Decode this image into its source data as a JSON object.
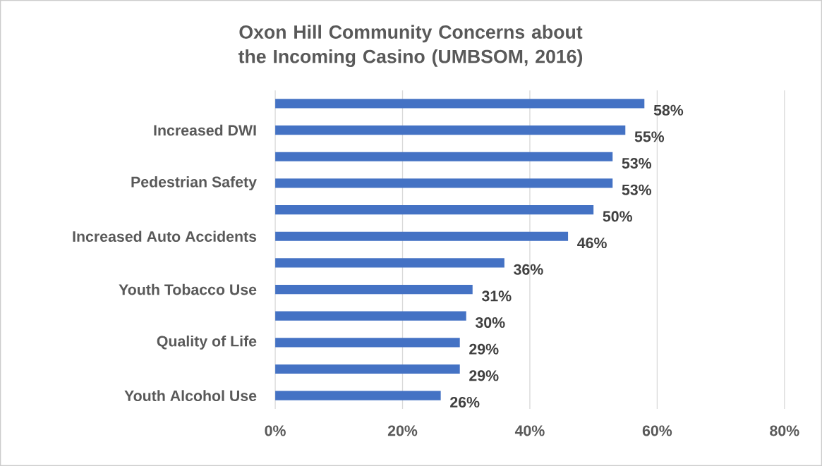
{
  "chart_data": {
    "type": "bar",
    "orientation": "horizontal",
    "title": "Oxon Hill Community Concerns about the Incoming Casino (UMBSOM, 2016)",
    "categories": [
      null,
      "Increased DWI",
      null,
      "Pedestrian Safety",
      null,
      "Increased Auto Accidents",
      null,
      "Youth Tobacco Use",
      null,
      "Quality of Life",
      null,
      "Youth Alcohol Use"
    ],
    "values": [
      58,
      55,
      53,
      53,
      50,
      46,
      36,
      31,
      30,
      29,
      29,
      26
    ],
    "value_labels": [
      "58%",
      "55%",
      "53%",
      "53%",
      "50%",
      "46%",
      "36%",
      "31%",
      "30%",
      "29%",
      "29%",
      "26%"
    ],
    "color": "#4472c4",
    "xlim": [
      0,
      80
    ],
    "xticks": [
      {
        "value": 0,
        "label": "0%"
      },
      {
        "value": 20,
        "label": "20%"
      },
      {
        "value": 40,
        "label": "40%"
      },
      {
        "value": 60,
        "label": "60%"
      },
      {
        "value": 80,
        "label": "80%"
      }
    ],
    "grid": "x"
  }
}
